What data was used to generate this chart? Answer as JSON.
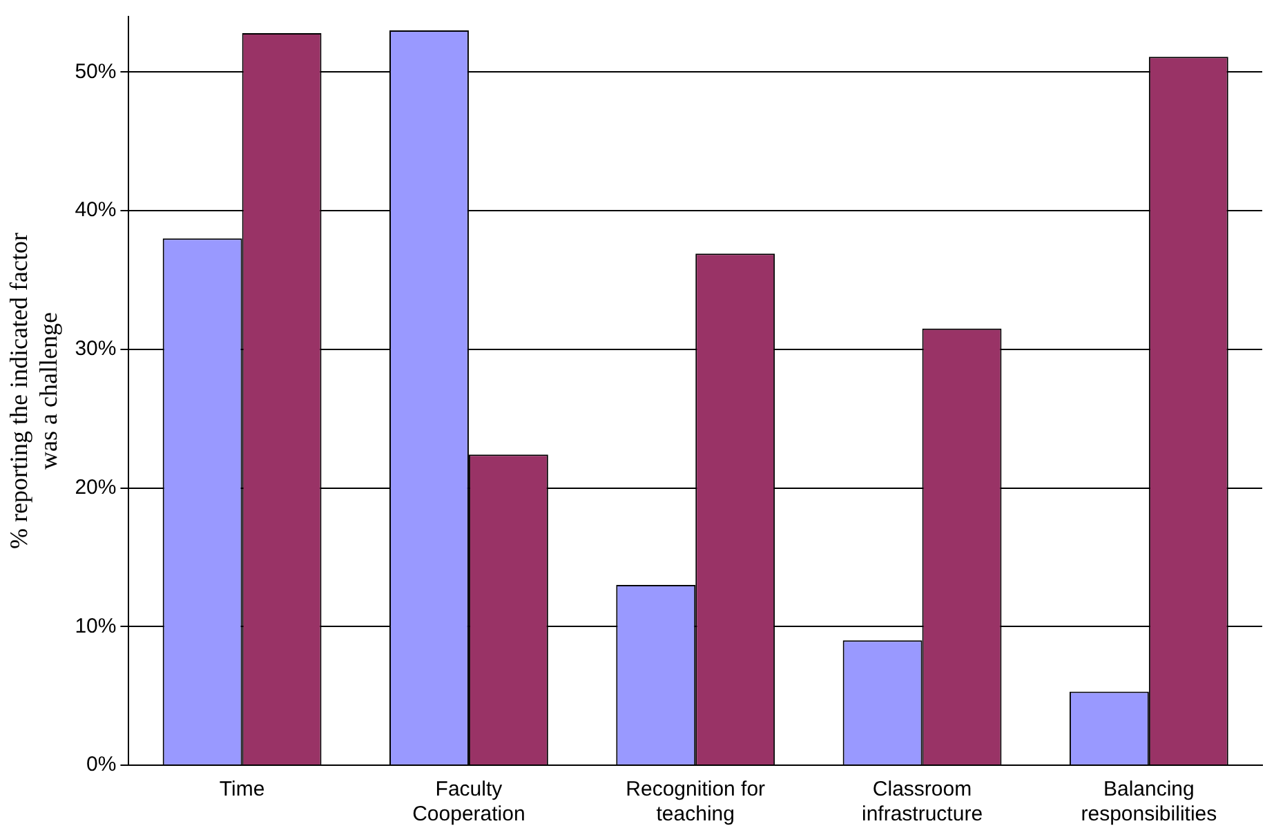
{
  "chart_data": {
    "type": "bar",
    "ylabel": "% reporting the indicated factor was a challenge",
    "categories": [
      "Time",
      "Faculty Cooperation",
      "Recognition for teaching",
      "Classroom infrastructure",
      "Balancing responsibilities"
    ],
    "series": [
      {
        "color": "#9999ff",
        "values": [
          38,
          53,
          13,
          9,
          5.3
        ]
      },
      {
        "color": "#993366",
        "values": [
          52.8,
          22.4,
          36.9,
          31.5,
          51.1
        ]
      }
    ],
    "ylim": [
      0,
      54
    ],
    "yticks": [
      {
        "value": 0,
        "label": "0%"
      },
      {
        "value": 10,
        "label": "10%"
      },
      {
        "value": 20,
        "label": "20%"
      },
      {
        "value": 30,
        "label": "30%"
      },
      {
        "value": 40,
        "label": "40%"
      },
      {
        "value": 50,
        "label": "50%"
      }
    ],
    "grid": "y",
    "legend": false
  }
}
